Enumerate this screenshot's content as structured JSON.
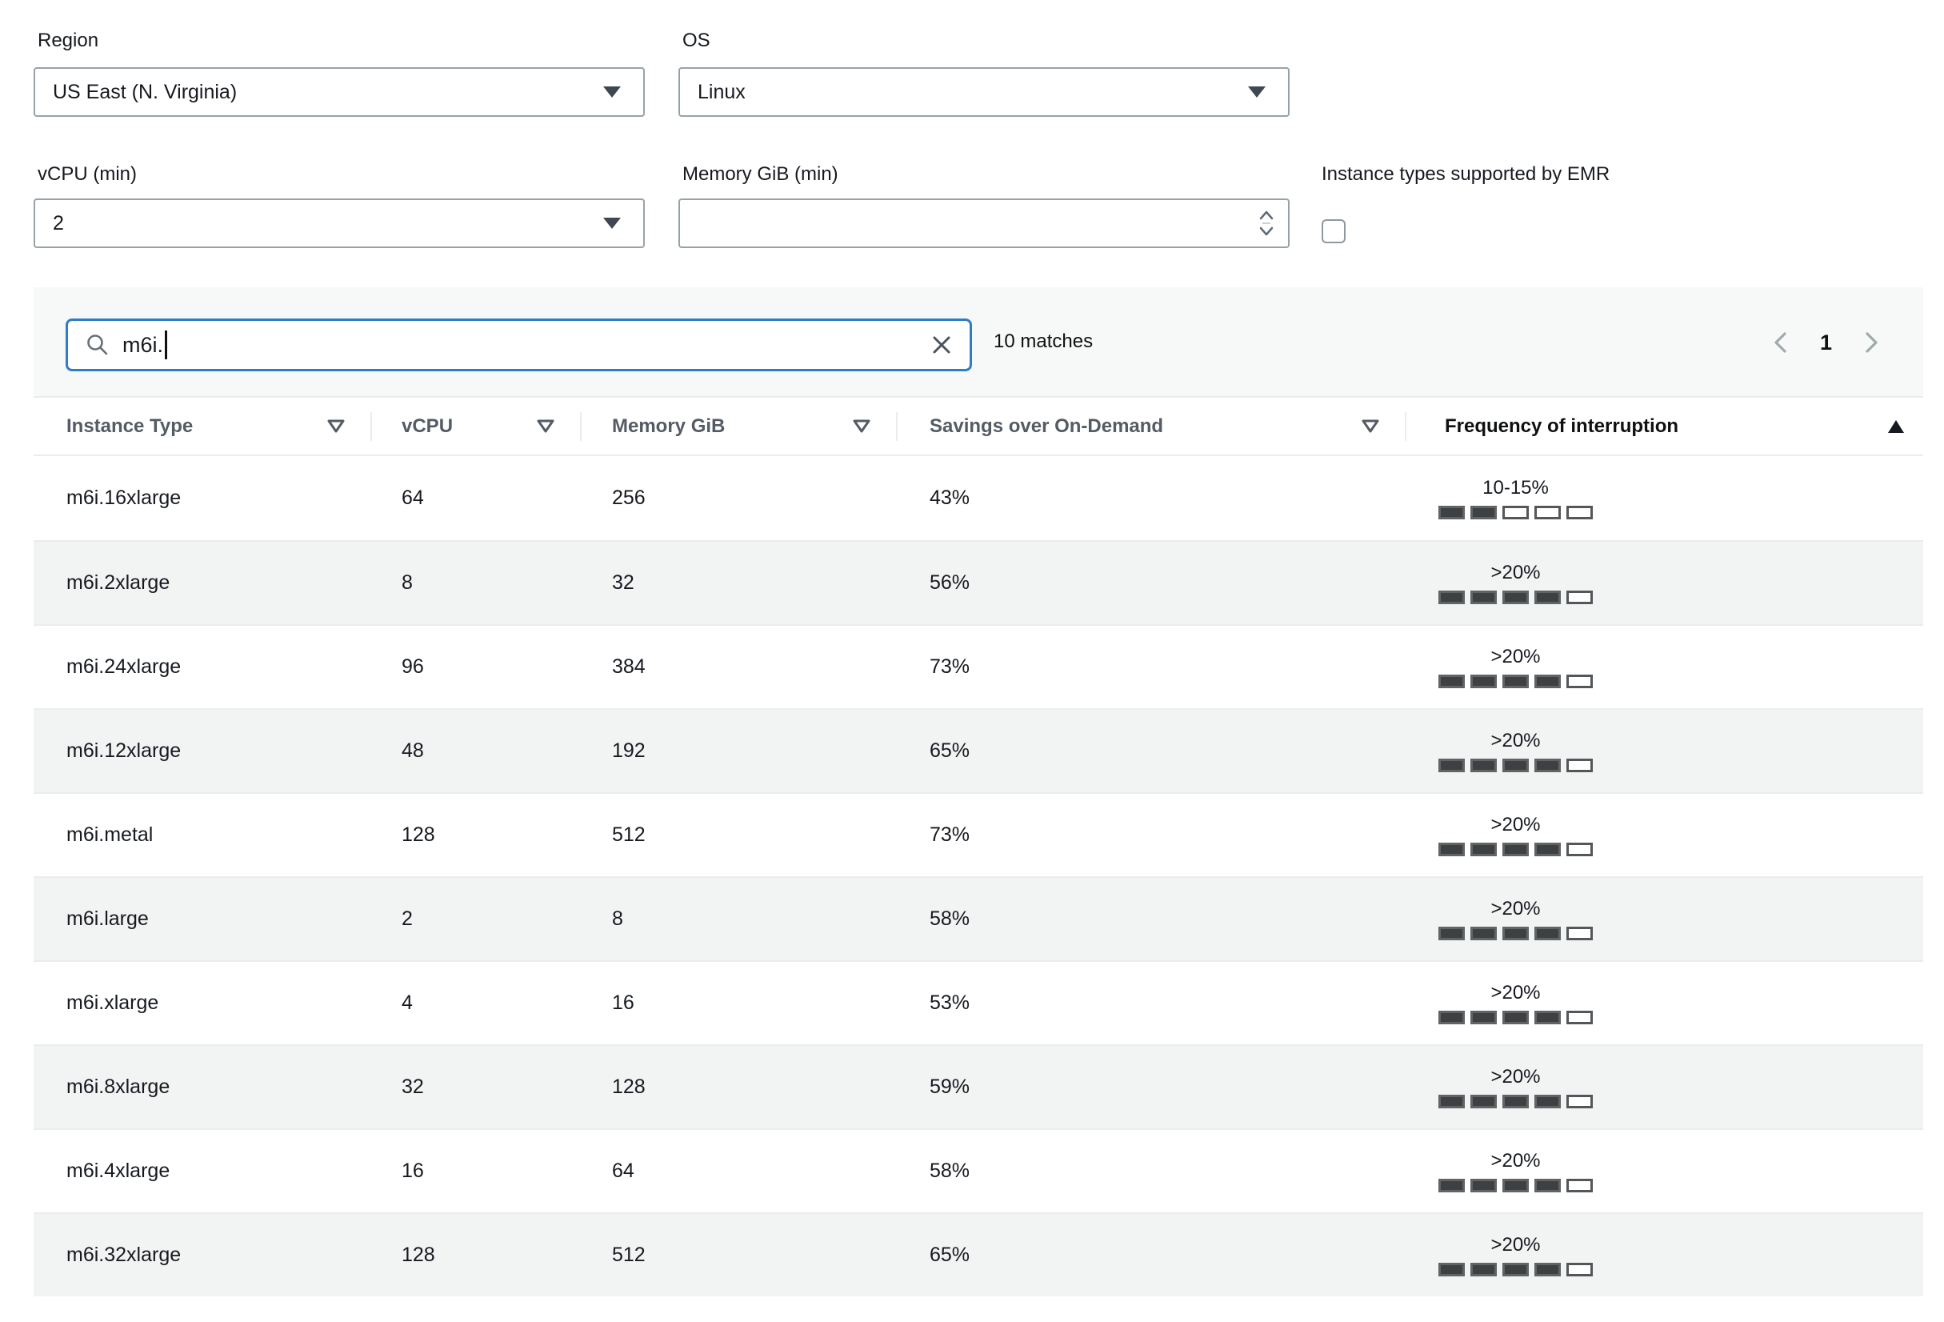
{
  "filters": {
    "region": {
      "label": "Region",
      "value": "US East (N. Virginia)"
    },
    "os": {
      "label": "OS",
      "value": "Linux"
    },
    "vcpu": {
      "label": "vCPU (min)",
      "value": "2"
    },
    "memory": {
      "label": "Memory GiB (min)",
      "value": ""
    },
    "emr": {
      "label": "Instance types supported by EMR",
      "checked": false
    }
  },
  "search": {
    "value": "m6i.",
    "matches_text": "10 matches"
  },
  "pagination": {
    "current_page": "1"
  },
  "table": {
    "columns": [
      {
        "label": "Instance Type",
        "icon": "triangle-down-outline-icon",
        "sorted": false
      },
      {
        "label": "vCPU",
        "icon": "triangle-down-outline-icon",
        "sorted": false
      },
      {
        "label": "Memory GiB",
        "icon": "triangle-down-outline-icon",
        "sorted": false
      },
      {
        "label": "Savings over On-Demand",
        "icon": "triangle-down-outline-icon",
        "sorted": false
      },
      {
        "label": "Frequency of interruption",
        "icon": "triangle-up-filled-icon",
        "sorted": true
      }
    ],
    "rows": [
      {
        "instance_type": "m6i.16xlarge",
        "vcpu": "64",
        "memory_gib": "256",
        "savings": "43%",
        "frequency_label": "10-15%",
        "frequency_level": 2
      },
      {
        "instance_type": "m6i.2xlarge",
        "vcpu": "8",
        "memory_gib": "32",
        "savings": "56%",
        "frequency_label": ">20%",
        "frequency_level": 4
      },
      {
        "instance_type": "m6i.24xlarge",
        "vcpu": "96",
        "memory_gib": "384",
        "savings": "73%",
        "frequency_label": ">20%",
        "frequency_level": 4
      },
      {
        "instance_type": "m6i.12xlarge",
        "vcpu": "48",
        "memory_gib": "192",
        "savings": "65%",
        "frequency_label": ">20%",
        "frequency_level": 4
      },
      {
        "instance_type": "m6i.metal",
        "vcpu": "128",
        "memory_gib": "512",
        "savings": "73%",
        "frequency_label": ">20%",
        "frequency_level": 4
      },
      {
        "instance_type": "m6i.large",
        "vcpu": "2",
        "memory_gib": "8",
        "savings": "58%",
        "frequency_label": ">20%",
        "frequency_level": 4
      },
      {
        "instance_type": "m6i.xlarge",
        "vcpu": "4",
        "memory_gib": "16",
        "savings": "53%",
        "frequency_label": ">20%",
        "frequency_level": 4
      },
      {
        "instance_type": "m6i.8xlarge",
        "vcpu": "32",
        "memory_gib": "128",
        "savings": "59%",
        "frequency_label": ">20%",
        "frequency_level": 4
      },
      {
        "instance_type": "m6i.4xlarge",
        "vcpu": "16",
        "memory_gib": "64",
        "savings": "58%",
        "frequency_label": ">20%",
        "frequency_level": 4
      },
      {
        "instance_type": "m6i.32xlarge",
        "vcpu": "128",
        "memory_gib": "512",
        "savings": "65%",
        "frequency_label": ">20%",
        "frequency_level": 4
      }
    ],
    "frequency_bar_count": 5
  },
  "colors": {
    "focus_blue": "#2e7dc7",
    "bar_filled": "#3e4042",
    "row_stripe": "#f2f3f3",
    "panel_bg": "#f7f8f8",
    "border": "#e9eded",
    "header_text": "#545b64",
    "text": "#16191f"
  }
}
